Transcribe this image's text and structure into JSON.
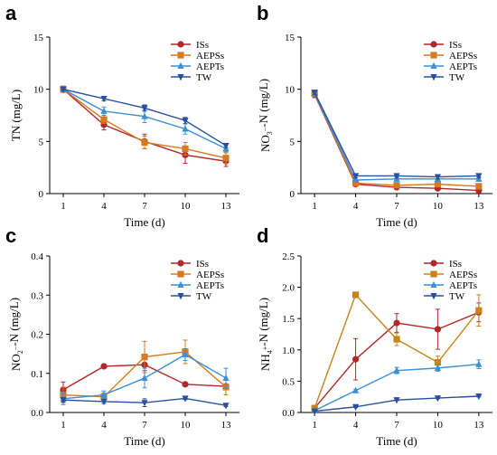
{
  "chart_data": [
    {
      "panel": "a",
      "type": "line",
      "ylabel": "TN (mg/L)",
      "xlabel": "Time (d)",
      "x": [
        1,
        4,
        7,
        10,
        13
      ],
      "ylim": [
        0,
        15
      ],
      "yticks": [
        0,
        5,
        10,
        15
      ],
      "series": [
        {
          "name": "ISs",
          "color": "#b2282a",
          "marker": "circle",
          "values": [
            10.0,
            6.6,
            5.0,
            3.7,
            3.1
          ],
          "errors": [
            0.3,
            0.5,
            0.7,
            0.8,
            0.5
          ]
        },
        {
          "name": "AEPSs",
          "color": "#d6791f",
          "marker": "square",
          "values": [
            10.0,
            7.1,
            4.9,
            4.3,
            3.4
          ],
          "errors": [
            0.2,
            0.4,
            0.6,
            0.6,
            0.5
          ]
        },
        {
          "name": "AEPTs",
          "color": "#3a8fd6",
          "marker": "triangle",
          "values": [
            10.0,
            7.9,
            7.4,
            6.2,
            4.3
          ],
          "errors": [
            0.2,
            0.4,
            0.6,
            0.5,
            0.3
          ]
        },
        {
          "name": "TW",
          "color": "#2b4fa0",
          "marker": "tridown",
          "values": [
            10.0,
            9.1,
            8.2,
            7.0,
            4.6
          ],
          "errors": [
            0.1,
            0.2,
            0.3,
            0.3,
            0.2
          ]
        }
      ]
    },
    {
      "panel": "b",
      "type": "line",
      "ylabel": "NO₃⁻-N (mg/L)",
      "xlabel": "Time (d)",
      "x": [
        1,
        4,
        7,
        10,
        13
      ],
      "ylim": [
        0,
        15
      ],
      "yticks": [
        0,
        5,
        10,
        15
      ],
      "series": [
        {
          "name": "ISs",
          "color": "#b2282a",
          "marker": "circle",
          "values": [
            9.5,
            0.9,
            0.6,
            0.5,
            0.3
          ],
          "errors": [
            0.3,
            0.2,
            0.2,
            0.2,
            0.1
          ]
        },
        {
          "name": "AEPSs",
          "color": "#d6791f",
          "marker": "square",
          "values": [
            9.6,
            1.0,
            0.8,
            0.9,
            0.7
          ],
          "errors": [
            0.3,
            0.2,
            0.2,
            0.2,
            0.2
          ]
        },
        {
          "name": "AEPTs",
          "color": "#3a8fd6",
          "marker": "triangle",
          "values": [
            9.6,
            1.3,
            1.4,
            1.4,
            1.4
          ],
          "errors": [
            0.2,
            0.2,
            0.2,
            0.2,
            0.2
          ]
        },
        {
          "name": "TW",
          "color": "#2b4fa0",
          "marker": "tridown",
          "values": [
            9.7,
            1.7,
            1.7,
            1.6,
            1.7
          ],
          "errors": [
            0.2,
            0.2,
            0.2,
            0.2,
            0.2
          ]
        }
      ]
    },
    {
      "panel": "c",
      "type": "line",
      "ylabel": "NO₂⁻-N (mg/L)",
      "xlabel": "Time (d)",
      "x": [
        1,
        4,
        7,
        10,
        13
      ],
      "ylim": [
        0,
        0.4
      ],
      "yticks": [
        0.0,
        0.1,
        0.2,
        0.3,
        0.4
      ],
      "series": [
        {
          "name": "ISs",
          "color": "#b2282a",
          "marker": "circle",
          "values": [
            0.058,
            0.118,
            0.122,
            0.072,
            0.067
          ],
          "errors": [
            0.02,
            0.005,
            0.015,
            0.005,
            0.005
          ]
        },
        {
          "name": "AEPSs",
          "color": "#d6791f",
          "marker": "square",
          "values": [
            0.045,
            0.04,
            0.142,
            0.155,
            0.065
          ],
          "errors": [
            0.02,
            0.01,
            0.04,
            0.03,
            0.02
          ]
        },
        {
          "name": "AEPTs",
          "color": "#3a8fd6",
          "marker": "triangle",
          "values": [
            0.035,
            0.045,
            0.088,
            0.148,
            0.088
          ],
          "errors": [
            0.015,
            0.01,
            0.025,
            0.015,
            0.025
          ]
        },
        {
          "name": "TW",
          "color": "#2b4fa0",
          "marker": "tridown",
          "values": [
            0.032,
            0.028,
            0.025,
            0.036,
            0.018
          ],
          "errors": [
            0.005,
            0.005,
            0.01,
            0.003,
            0.003
          ]
        }
      ]
    },
    {
      "panel": "d",
      "type": "line",
      "ylabel": "NH₄⁺-N (mg/L)",
      "xlabel": "Time (d)",
      "x": [
        1,
        4,
        7,
        10,
        13
      ],
      "ylim": [
        0,
        2.5
      ],
      "yticks": [
        0.0,
        0.5,
        1.0,
        1.5,
        2.0,
        2.5
      ],
      "series": [
        {
          "name": "ISs",
          "color": "#b2282a",
          "marker": "circle",
          "values": [
            0.07,
            0.85,
            1.43,
            1.33,
            1.6
          ],
          "errors": [
            0.04,
            0.33,
            0.15,
            0.32,
            0.15
          ]
        },
        {
          "name": "AEPSs",
          "color": "#c8841a",
          "marker": "square",
          "values": [
            0.07,
            1.88,
            1.17,
            0.8,
            1.63
          ],
          "errors": [
            0.02,
            0.02,
            0.1,
            0.1,
            0.25
          ]
        },
        {
          "name": "AEPTs",
          "color": "#3a8fd6",
          "marker": "triangle",
          "values": [
            0.03,
            0.35,
            0.67,
            0.71,
            0.77
          ],
          "errors": [
            0.01,
            0.02,
            0.05,
            0.05,
            0.07
          ]
        },
        {
          "name": "TW",
          "color": "#2b4fa0",
          "marker": "tridown",
          "values": [
            0.02,
            0.09,
            0.2,
            0.23,
            0.26
          ],
          "errors": [
            0.005,
            0.01,
            0.01,
            0.01,
            0.01
          ]
        }
      ]
    }
  ]
}
